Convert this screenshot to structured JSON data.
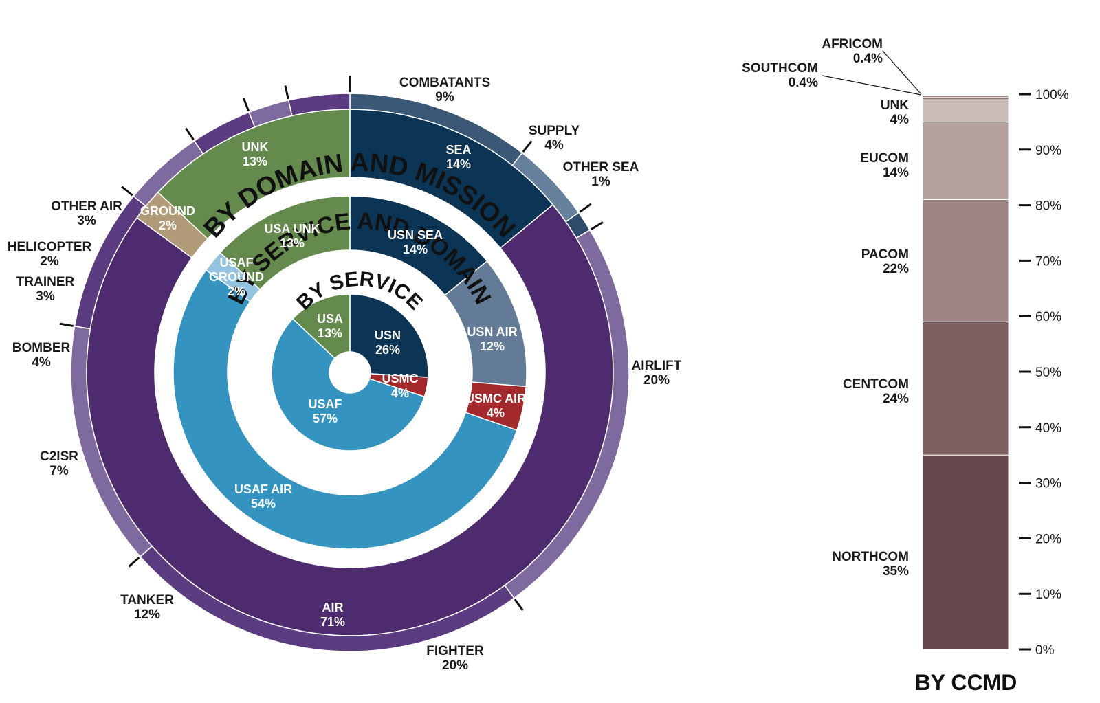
{
  "chart_data": [
    {
      "type": "sunburst",
      "rings": [
        {
          "title": "BY SERVICE",
          "segments": [
            {
              "name": "USN",
              "value": 26,
              "label": "26%",
              "color": "#0b3455"
            },
            {
              "name": "USMC",
              "value": 4,
              "label": "4%",
              "color": "#a3292d"
            },
            {
              "name": "USAF",
              "value": 57,
              "label": "57%",
              "color": "#3593c0"
            },
            {
              "name": "USA",
              "value": 13,
              "label": "13%",
              "color": "#658a4e"
            }
          ]
        },
        {
          "title": "BY SERVICE AND DOMAIN",
          "segments": [
            {
              "name": "USN SEA",
              "value": 14,
              "label": "14%",
              "color": "#0b3455"
            },
            {
              "name": "USN AIR",
              "value": 12,
              "label": "12%",
              "color": "#637b97"
            },
            {
              "name": "USMC AIR",
              "value": 4,
              "label": "4%",
              "color": "#a3292d"
            },
            {
              "name": "USAF AIR",
              "value": 54,
              "label": "54%",
              "color": "#3593c0"
            },
            {
              "name": "USAF GROUND",
              "value": 2,
              "label": "2%",
              "color": "#93c3df"
            },
            {
              "name": "USA UNK",
              "value": 13,
              "label": "13%",
              "color": "#658a4e"
            }
          ]
        },
        {
          "title": "BY DOMAIN AND MISSION",
          "domains": [
            {
              "name": "SEA",
              "value": 14,
              "label": "14%",
              "color": "#0b3455"
            },
            {
              "name": "AIR",
              "value": 71,
              "label": "71%",
              "color": "#4e2b6f"
            },
            {
              "name": "GROUND",
              "value": 2,
              "label": "2%",
              "color": "#b09a77"
            },
            {
              "name": "UNK",
              "value": 13,
              "label": "13%",
              "color": "#658a4e"
            }
          ],
          "missions": [
            {
              "name": "COMBATANTS",
              "value": 9,
              "label": "9%",
              "color": "#3c5877"
            },
            {
              "name": "SUPPLY",
              "value": 4,
              "label": "4%",
              "color": "#67819d"
            },
            {
              "name": "OTHER SEA",
              "value": 1,
              "label": "1%",
              "color": "#2f4b6b"
            },
            {
              "name": "AIRLIFT",
              "value": 20,
              "label": "20%",
              "color": "#7f6a9f"
            },
            {
              "name": "FIGHTER",
              "value": 20,
              "label": "20%",
              "color": "#5c3c80"
            },
            {
              "name": "TANKER",
              "value": 12,
              "label": "12%",
              "color": "#7f6a9f"
            },
            {
              "name": "C2ISR",
              "value": 7,
              "label": "7%",
              "color": "#5c3c80"
            },
            {
              "name": "BOMBER",
              "value": 4,
              "label": "4%",
              "color": "#7f6a9f"
            },
            {
              "name": "TRAINER",
              "value": 3,
              "label": "3%",
              "color": "#5c3c80"
            },
            {
              "name": "HELICOPTER",
              "value": 2,
              "label": "2%",
              "color": "#7f6a9f"
            },
            {
              "name": "OTHER AIR",
              "value": 3,
              "label": "3%",
              "color": "#5c3c80"
            }
          ]
        }
      ]
    },
    {
      "type": "stacked-bar",
      "title": "BY CCMD",
      "ylim": [
        0,
        100
      ],
      "ticks": [
        "0%",
        "10%",
        "20%",
        "30%",
        "40%",
        "50%",
        "60%",
        "70%",
        "80%",
        "90%",
        "100%"
      ],
      "segments": [
        {
          "name": "NORTHCOM",
          "value": 35,
          "label": "35%",
          "color": "#64474b"
        },
        {
          "name": "CENTCOM",
          "value": 24,
          "label": "24%",
          "color": "#7e6062"
        },
        {
          "name": "PACOM",
          "value": 22,
          "label": "22%",
          "color": "#9c8582"
        },
        {
          "name": "EUCOM",
          "value": 14,
          "label": "14%",
          "color": "#b4a19d"
        },
        {
          "name": "UNK",
          "value": 4,
          "label": "4%",
          "color": "#cbbcb7"
        },
        {
          "name": "SOUTHCOM",
          "value": 0.4,
          "label": "0.4%",
          "color": "#8d7471"
        },
        {
          "name": "AFRICOM",
          "value": 0.4,
          "label": "0.4%",
          "color": "#a08884"
        }
      ]
    }
  ]
}
